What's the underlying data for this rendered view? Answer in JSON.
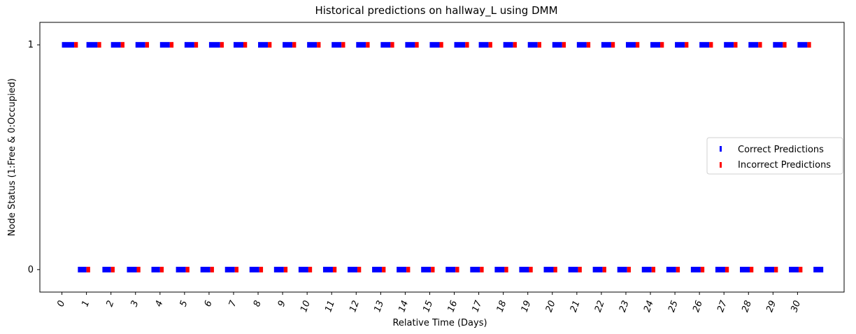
{
  "chart_data": {
    "type": "scatter",
    "title": "Historical predictions on hallway_L using DMM",
    "xlabel": "Relative Time (Days)",
    "ylabel": "Node Status (1:Free & 0:Occupied)",
    "xlim": [
      -0.9,
      31.9
    ],
    "ylim": [
      -0.1,
      1.1
    ],
    "x_ticks": [
      0,
      1,
      2,
      3,
      4,
      5,
      6,
      7,
      8,
      9,
      10,
      11,
      12,
      13,
      14,
      15,
      16,
      17,
      18,
      19,
      20,
      21,
      22,
      23,
      24,
      25,
      26,
      27,
      28,
      29,
      30
    ],
    "x_tick_labels": [
      "0",
      "1",
      "2",
      "3",
      "4",
      "5",
      "6",
      "7",
      "8",
      "9",
      "10",
      "11",
      "12",
      "13",
      "14",
      "15",
      "16",
      "17",
      "18",
      "19",
      "20",
      "21",
      "22",
      "23",
      "24",
      "25",
      "26",
      "27",
      "28",
      "29",
      "30"
    ],
    "y_ticks": [
      0,
      1
    ],
    "y_tick_labels": [
      "0",
      "1"
    ],
    "marker": "|",
    "legend_position": "center-right",
    "series": [
      {
        "name": "Correct Predictions",
        "color": "#0000ff",
        "y1_intervals": [
          [
            0.0,
            0.5
          ],
          [
            1.0,
            1.45
          ],
          [
            2.0,
            2.4
          ],
          [
            3.0,
            3.4
          ],
          [
            4.0,
            4.4
          ],
          [
            5.0,
            5.4
          ],
          [
            6.0,
            6.45
          ],
          [
            7.0,
            7.4
          ],
          [
            8.0,
            8.4
          ],
          [
            9.0,
            9.4
          ],
          [
            10.0,
            10.4
          ],
          [
            11.0,
            11.4
          ],
          [
            12.0,
            12.4
          ],
          [
            13.0,
            13.4
          ],
          [
            14.0,
            14.4
          ],
          [
            15.0,
            15.4
          ],
          [
            16.0,
            16.45
          ],
          [
            17.0,
            17.4
          ],
          [
            18.0,
            18.4
          ],
          [
            19.0,
            19.4
          ],
          [
            20.0,
            20.4
          ],
          [
            21.0,
            21.4
          ],
          [
            22.0,
            22.4
          ],
          [
            23.0,
            23.4
          ],
          [
            24.0,
            24.4
          ],
          [
            25.0,
            25.4
          ],
          [
            26.0,
            26.4
          ],
          [
            27.0,
            27.4
          ],
          [
            28.0,
            28.4
          ],
          [
            29.0,
            29.4
          ],
          [
            30.0,
            30.4
          ]
        ],
        "y0_intervals": [
          [
            0.65,
            1.0
          ],
          [
            1.65,
            2.0
          ],
          [
            2.65,
            3.05
          ],
          [
            3.65,
            4.0
          ],
          [
            4.65,
            5.05
          ],
          [
            5.65,
            6.05
          ],
          [
            6.65,
            7.05
          ],
          [
            7.65,
            8.05
          ],
          [
            8.65,
            9.05
          ],
          [
            9.65,
            10.05
          ],
          [
            10.65,
            11.05
          ],
          [
            11.65,
            12.05
          ],
          [
            12.65,
            13.05
          ],
          [
            13.65,
            14.05
          ],
          [
            14.65,
            15.05
          ],
          [
            15.65,
            16.05
          ],
          [
            16.65,
            17.05
          ],
          [
            17.65,
            18.05
          ],
          [
            18.65,
            19.05
          ],
          [
            19.65,
            20.05
          ],
          [
            20.65,
            21.05
          ],
          [
            21.65,
            22.05
          ],
          [
            22.65,
            23.05
          ],
          [
            23.65,
            24.05
          ],
          [
            24.65,
            25.05
          ],
          [
            25.65,
            26.05
          ],
          [
            26.65,
            27.05
          ],
          [
            27.65,
            28.05
          ],
          [
            28.65,
            29.05
          ],
          [
            29.65,
            30.05
          ],
          [
            30.65,
            31.05
          ]
        ]
      },
      {
        "name": "Incorrect Predictions",
        "color": "#ff0000",
        "y1_intervals": [
          [
            0.5,
            0.65
          ],
          [
            1.45,
            1.6
          ],
          [
            2.4,
            2.55
          ],
          [
            3.4,
            3.55
          ],
          [
            4.4,
            4.55
          ],
          [
            5.4,
            5.55
          ],
          [
            6.45,
            6.6
          ],
          [
            7.4,
            7.55
          ],
          [
            8.4,
            8.55
          ],
          [
            9.4,
            9.55
          ],
          [
            10.4,
            10.55
          ],
          [
            11.4,
            11.55
          ],
          [
            12.4,
            12.55
          ],
          [
            13.4,
            13.55
          ],
          [
            14.4,
            14.55
          ],
          [
            15.4,
            15.55
          ],
          [
            16.45,
            16.6
          ],
          [
            17.4,
            17.55
          ],
          [
            18.4,
            18.55
          ],
          [
            19.4,
            19.55
          ],
          [
            20.4,
            20.55
          ],
          [
            21.4,
            21.55
          ],
          [
            22.4,
            22.55
          ],
          [
            23.4,
            23.55
          ],
          [
            24.4,
            24.55
          ],
          [
            25.4,
            25.55
          ],
          [
            26.4,
            26.55
          ],
          [
            27.4,
            27.55
          ],
          [
            28.4,
            28.55
          ],
          [
            29.4,
            29.55
          ],
          [
            30.4,
            30.55
          ]
        ],
        "y0_intervals": [
          [
            1.0,
            1.15
          ],
          [
            2.0,
            2.15
          ],
          [
            3.05,
            3.2
          ],
          [
            4.0,
            4.15
          ],
          [
            5.05,
            5.2
          ],
          [
            6.05,
            6.2
          ],
          [
            7.05,
            7.2
          ],
          [
            8.05,
            8.2
          ],
          [
            9.05,
            9.2
          ],
          [
            10.05,
            10.2
          ],
          [
            11.05,
            11.2
          ],
          [
            12.05,
            12.2
          ],
          [
            13.05,
            13.2
          ],
          [
            14.05,
            14.2
          ],
          [
            15.05,
            15.2
          ],
          [
            16.05,
            16.2
          ],
          [
            17.05,
            17.2
          ],
          [
            18.05,
            18.2
          ],
          [
            19.05,
            19.2
          ],
          [
            20.05,
            20.2
          ],
          [
            21.05,
            21.2
          ],
          [
            22.05,
            22.2
          ],
          [
            23.05,
            23.2
          ],
          [
            24.05,
            24.2
          ],
          [
            25.05,
            25.2
          ],
          [
            26.05,
            26.2
          ],
          [
            27.05,
            27.2
          ],
          [
            28.05,
            28.2
          ],
          [
            29.05,
            29.2
          ],
          [
            30.05,
            30.2
          ]
        ]
      }
    ]
  }
}
